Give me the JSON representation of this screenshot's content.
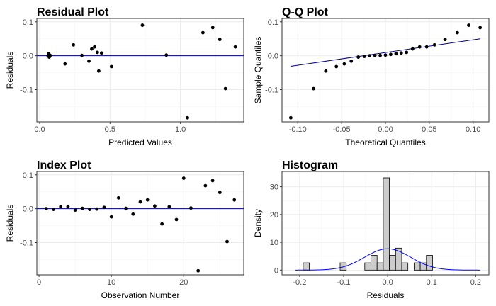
{
  "chart_data": [
    {
      "id": "residual",
      "type": "scatter",
      "title": "Residual Plot",
      "xlabel": "Predicted Values",
      "ylabel": "Residuals",
      "xlim": [
        -0.02,
        1.45
      ],
      "ylim": [
        -0.195,
        0.11
      ],
      "xticks": [
        0,
        0.5,
        1
      ],
      "xtick_labels": [
        "0.0",
        "0.5",
        "1.0"
      ],
      "yticks": [
        -0.1,
        0,
        0.1
      ],
      "ytick_labels": [
        "-0.1",
        "0.0",
        "0.1"
      ],
      "ref_line": {
        "type": "hline",
        "y": 0
      },
      "points": [
        {
          "x": 0.06,
          "y": 0.0
        },
        {
          "x": 0.065,
          "y": 0.004
        },
        {
          "x": 0.07,
          "y": -0.002
        },
        {
          "x": 0.065,
          "y": 0.006
        },
        {
          "x": 0.075,
          "y": 0.001
        },
        {
          "x": 0.068,
          "y": -0.004
        },
        {
          "x": 0.18,
          "y": -0.024
        },
        {
          "x": 0.24,
          "y": 0.032
        },
        {
          "x": 0.3,
          "y": 0.001
        },
        {
          "x": 0.35,
          "y": -0.016
        },
        {
          "x": 0.37,
          "y": 0.02
        },
        {
          "x": 0.39,
          "y": 0.026
        },
        {
          "x": 0.41,
          "y": 0.01
        },
        {
          "x": 0.42,
          "y": -0.045
        },
        {
          "x": 0.44,
          "y": 0.008
        },
        {
          "x": 0.51,
          "y": -0.032
        },
        {
          "x": 0.73,
          "y": 0.09
        },
        {
          "x": 0.9,
          "y": 0.002
        },
        {
          "x": 1.05,
          "y": -0.183
        },
        {
          "x": 1.16,
          "y": 0.068
        },
        {
          "x": 1.23,
          "y": 0.083
        },
        {
          "x": 1.28,
          "y": 0.048
        },
        {
          "x": 1.32,
          "y": -0.097
        },
        {
          "x": 1.39,
          "y": 0.026
        }
      ]
    },
    {
      "id": "qq",
      "type": "scatter",
      "title": "Q-Q Plot",
      "xlabel": "Theoretical Quantiles",
      "ylabel": "Sample Quantiles",
      "xlim": [
        -0.118,
        0.118
      ],
      "ylim": [
        -0.195,
        0.11
      ],
      "xticks": [
        -0.1,
        -0.05,
        0,
        0.05,
        0.1
      ],
      "xtick_labels": [
        "-0.10",
        "-0.05",
        "0.00",
        "0.05",
        "0.10"
      ],
      "yticks": [
        -0.1,
        0,
        0.1
      ],
      "ytick_labels": [
        "-0.1",
        "0.0",
        "0.1"
      ],
      "ref_line": {
        "type": "segment",
        "x1": -0.108,
        "y1": -0.031,
        "x2": 0.108,
        "y2": 0.05
      },
      "points": [
        {
          "x": -0.108,
          "y": -0.183
        },
        {
          "x": -0.082,
          "y": -0.097
        },
        {
          "x": -0.068,
          "y": -0.045
        },
        {
          "x": -0.056,
          "y": -0.032
        },
        {
          "x": -0.047,
          "y": -0.024
        },
        {
          "x": -0.039,
          "y": -0.016
        },
        {
          "x": -0.031,
          "y": -0.004
        },
        {
          "x": -0.024,
          "y": -0.002
        },
        {
          "x": -0.018,
          "y": 0.0
        },
        {
          "x": -0.012,
          "y": 0.001
        },
        {
          "x": -0.006,
          "y": 0.001
        },
        {
          "x": 0.0,
          "y": 0.002
        },
        {
          "x": 0.006,
          "y": 0.004
        },
        {
          "x": 0.012,
          "y": 0.006
        },
        {
          "x": 0.018,
          "y": 0.008
        },
        {
          "x": 0.024,
          "y": 0.01
        },
        {
          "x": 0.031,
          "y": 0.02
        },
        {
          "x": 0.039,
          "y": 0.026
        },
        {
          "x": 0.047,
          "y": 0.026
        },
        {
          "x": 0.056,
          "y": 0.032
        },
        {
          "x": 0.068,
          "y": 0.048
        },
        {
          "x": 0.082,
          "y": 0.068
        },
        {
          "x": 0.108,
          "y": 0.083
        },
        {
          "x": 0.095,
          "y": 0.09
        }
      ]
    },
    {
      "id": "index",
      "type": "scatter",
      "title": "Index Plot",
      "xlabel": "Observation Number",
      "ylabel": "Residuals",
      "xlim": [
        -0.3,
        28.3
      ],
      "ylim": [
        -0.195,
        0.11
      ],
      "xticks": [
        0,
        10,
        20
      ],
      "xtick_labels": [
        "0",
        "10",
        "20"
      ],
      "yticks": [
        -0.1,
        0,
        0.1
      ],
      "ytick_labels": [
        "-0.1",
        "0.0",
        "0.1"
      ],
      "ref_line": {
        "type": "hline",
        "y": 0
      },
      "points": [
        {
          "x": 1,
          "y": 0.0
        },
        {
          "x": 2,
          "y": -0.002
        },
        {
          "x": 3,
          "y": 0.006
        },
        {
          "x": 4,
          "y": 0.006
        },
        {
          "x": 5,
          "y": -0.004
        },
        {
          "x": 6,
          "y": 0.001
        },
        {
          "x": 7,
          "y": -0.002
        },
        {
          "x": 8,
          "y": -0.001
        },
        {
          "x": 9,
          "y": 0.004
        },
        {
          "x": 10,
          "y": -0.024
        },
        {
          "x": 11,
          "y": 0.032
        },
        {
          "x": 12,
          "y": 0.001
        },
        {
          "x": 13,
          "y": -0.016
        },
        {
          "x": 14,
          "y": 0.02
        },
        {
          "x": 15,
          "y": 0.026
        },
        {
          "x": 16,
          "y": 0.008
        },
        {
          "x": 17,
          "y": -0.045
        },
        {
          "x": 18,
          "y": 0.006
        },
        {
          "x": 19,
          "y": -0.032
        },
        {
          "x": 20,
          "y": 0.09
        },
        {
          "x": 21,
          "y": 0.002
        },
        {
          "x": 22,
          "y": -0.183
        },
        {
          "x": 23,
          "y": 0.068
        },
        {
          "x": 24,
          "y": 0.083
        },
        {
          "x": 25,
          "y": 0.048
        },
        {
          "x": 26,
          "y": -0.097
        },
        {
          "x": 27,
          "y": 0.026
        }
      ]
    },
    {
      "id": "histogram",
      "type": "bar",
      "title": "Histogram",
      "xlabel": "Residuals",
      "ylabel": "Density",
      "xlim": [
        -0.24,
        0.23
      ],
      "ylim": [
        -1.7,
        35.5
      ],
      "xticks": [
        -0.2,
        -0.1,
        0,
        0.1,
        0.2
      ],
      "xtick_labels": [
        "-0.2",
        "-0.1",
        "0.0",
        "0.1",
        "0.2"
      ],
      "yticks": [
        0,
        10,
        20,
        30
      ],
      "ytick_labels": [
        "0",
        "10",
        "20",
        "30"
      ],
      "bins": [
        {
          "x0": -0.192,
          "x1": -0.178,
          "value": 2.6
        },
        {
          "x0": -0.108,
          "x1": -0.094,
          "value": 2.6
        },
        {
          "x0": -0.052,
          "x1": -0.038,
          "value": 2.6
        },
        {
          "x0": -0.038,
          "x1": -0.024,
          "value": 5.3
        },
        {
          "x0": -0.024,
          "x1": -0.01,
          "value": 2.6
        },
        {
          "x0": -0.01,
          "x1": 0.004,
          "value": 33.2
        },
        {
          "x0": 0.004,
          "x1": 0.018,
          "value": 5.3
        },
        {
          "x0": 0.018,
          "x1": 0.032,
          "value": 7.9
        },
        {
          "x0": 0.032,
          "x1": 0.046,
          "value": 2.6
        },
        {
          "x0": 0.046,
          "x1": 0.06,
          "value": 0
        },
        {
          "x0": 0.06,
          "x1": 0.074,
          "value": 2.6
        },
        {
          "x0": 0.074,
          "x1": 0.088,
          "value": 2.6
        },
        {
          "x0": 0.088,
          "x1": 0.102,
          "value": 5.3
        }
      ],
      "density_curve": {
        "type": "normal",
        "mean": 0.0,
        "sd": 0.052,
        "from": -0.21,
        "to": 0.21,
        "color": "#0000ff"
      }
    }
  ],
  "colors": {
    "ref_line": "#00008b",
    "density": "#0000ff",
    "bars": "#cccccc"
  }
}
